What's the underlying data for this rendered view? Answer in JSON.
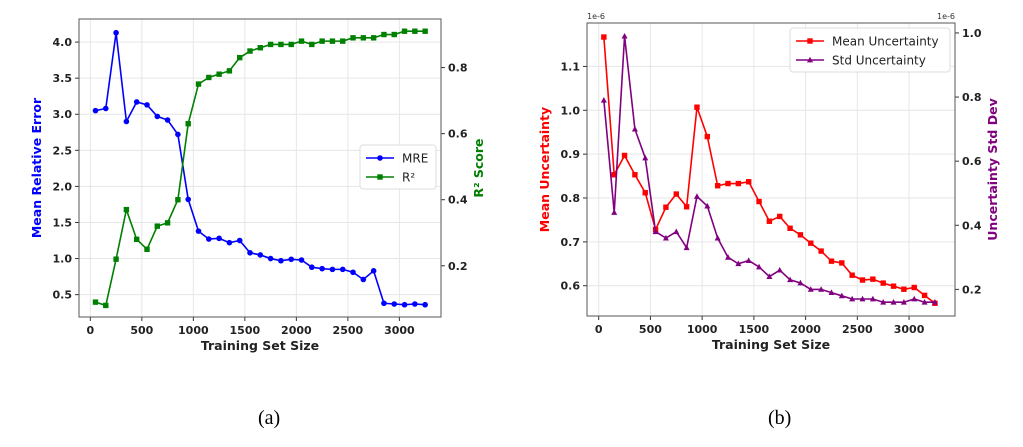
{
  "chart_data": [
    {
      "type": "line",
      "caption": "(a)",
      "xlabel": "Training Set Size",
      "ylabel": "Mean Relative Error",
      "y2label": "R² Score",
      "xlim": [
        -110,
        3404
      ],
      "ylim": [
        0.19,
        4.32
      ],
      "y2lim": [
        0.045,
        0.947
      ],
      "xticks": [
        0,
        500,
        1000,
        1500,
        2000,
        2500,
        3000
      ],
      "yticks": [
        0.5,
        1.0,
        1.5,
        2.0,
        2.5,
        3.0,
        3.5,
        4.0
      ],
      "y2ticks": [
        0.2,
        0.4,
        0.6,
        0.8
      ],
      "ytick_labels": [
        "0.5",
        "1.0",
        "1.5",
        "2.0",
        "2.5",
        "3.0",
        "3.5",
        "4.0"
      ],
      "y2tick_labels": [
        "0.2",
        "0.4",
        "0.6",
        "0.8"
      ],
      "grid": true,
      "legend_position": "center-right",
      "x": [
        50,
        150,
        250,
        350,
        450,
        550,
        650,
        750,
        850,
        950,
        1050,
        1150,
        1250,
        1350,
        1450,
        1550,
        1650,
        1750,
        1850,
        1950,
        2050,
        2150,
        2250,
        2350,
        2450,
        2550,
        2650,
        2750,
        2850,
        2950,
        3050,
        3150,
        3250
      ],
      "series": [
        {
          "name": "MRE",
          "axis": "left",
          "color": "#0000ff",
          "marker": "circle",
          "values": [
            3.05,
            3.08,
            4.13,
            2.9,
            3.17,
            3.13,
            2.97,
            2.92,
            2.72,
            1.82,
            1.38,
            1.27,
            1.28,
            1.22,
            1.25,
            1.08,
            1.05,
            1.0,
            0.97,
            0.99,
            0.98,
            0.88,
            0.86,
            0.85,
            0.85,
            0.81,
            0.71,
            0.83,
            0.38,
            0.37,
            0.36,
            0.37,
            0.36
          ]
        },
        {
          "name": "R²",
          "axis": "right",
          "color": "#008000",
          "marker": "square",
          "values": [
            0.09,
            0.08,
            0.22,
            0.37,
            0.28,
            0.25,
            0.32,
            0.33,
            0.4,
            0.63,
            0.75,
            0.77,
            0.78,
            0.79,
            0.83,
            0.85,
            0.86,
            0.87,
            0.87,
            0.87,
            0.88,
            0.87,
            0.88,
            0.88,
            0.88,
            0.89,
            0.89,
            0.89,
            0.9,
            0.9,
            0.91,
            0.91,
            0.91
          ]
        }
      ]
    },
    {
      "type": "line",
      "caption": "(b)",
      "xlabel": "Training Set Size",
      "ylabel": "Mean Uncertainty",
      "y2label": "Uncertainty Std Dev",
      "offset_label": "1e-6",
      "offset_label2": "1e-6",
      "xlim": [
        -113,
        3444
      ],
      "ylim": [
        0.531,
        1.199
      ],
      "y2lim": [
        0.117,
        1.031
      ],
      "xticks": [
        0,
        500,
        1000,
        1500,
        2000,
        2500,
        3000
      ],
      "yticks": [
        0.6,
        0.7,
        0.8,
        0.9,
        1.0,
        1.1
      ],
      "y2ticks": [
        0.2,
        0.4,
        0.6,
        0.8,
        1.0
      ],
      "ytick_labels": [
        "0.6",
        "0.7",
        "0.8",
        "0.9",
        "1.0",
        "1.1"
      ],
      "y2tick_labels": [
        "0.2",
        "0.4",
        "0.6",
        "0.8",
        "1.0"
      ],
      "grid": true,
      "legend_position": "top-right",
      "x": [
        50,
        150,
        250,
        350,
        450,
        550,
        650,
        750,
        850,
        950,
        1050,
        1150,
        1250,
        1350,
        1450,
        1550,
        1650,
        1750,
        1850,
        1950,
        2050,
        2150,
        2250,
        2350,
        2450,
        2550,
        2650,
        2750,
        2850,
        2950,
        3050,
        3150,
        3250
      ],
      "series": [
        {
          "name": "Mean Uncertainty",
          "axis": "left",
          "color": "#ff0000",
          "marker": "square",
          "values": [
            1.167,
            0.853,
            0.897,
            0.853,
            0.812,
            0.728,
            0.779,
            0.809,
            0.78,
            1.007,
            0.94,
            0.828,
            0.833,
            0.833,
            0.837,
            0.792,
            0.747,
            0.758,
            0.731,
            0.716,
            0.697,
            0.679,
            0.656,
            0.652,
            0.624,
            0.613,
            0.615,
            0.606,
            0.599,
            0.592,
            0.596,
            0.578,
            0.56
          ]
        },
        {
          "name": "Std Uncertainty",
          "axis": "right",
          "color": "#800080",
          "marker": "triangle",
          "values": [
            0.79,
            0.44,
            0.99,
            0.7,
            0.61,
            0.38,
            0.36,
            0.38,
            0.33,
            0.49,
            0.46,
            0.36,
            0.3,
            0.28,
            0.29,
            0.27,
            0.24,
            0.26,
            0.23,
            0.22,
            0.2,
            0.2,
            0.19,
            0.18,
            0.17,
            0.17,
            0.17,
            0.16,
            0.16,
            0.16,
            0.17,
            0.16,
            0.16
          ]
        }
      ]
    }
  ]
}
